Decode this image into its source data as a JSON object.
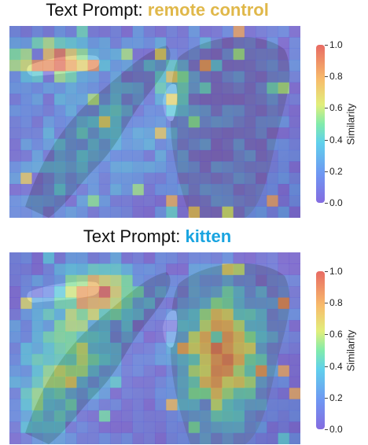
{
  "panels": [
    {
      "title_prefix": "Text Prompt: ",
      "keyword": "remote control",
      "keyword_color": "#e0b84a",
      "colorbar_label": "Similarity",
      "colorbar_ticks": [
        "0.0",
        "0.2",
        "0.4",
        "0.6",
        "0.8",
        "1.0"
      ]
    },
    {
      "title_prefix": "Text Prompt: ",
      "keyword": "kitten",
      "keyword_color": "#19a4e0",
      "colorbar_label": "Similarity",
      "colorbar_ticks": [
        "0.0",
        "0.2",
        "0.4",
        "0.6",
        "0.8",
        "1.0"
      ]
    }
  ]
}
